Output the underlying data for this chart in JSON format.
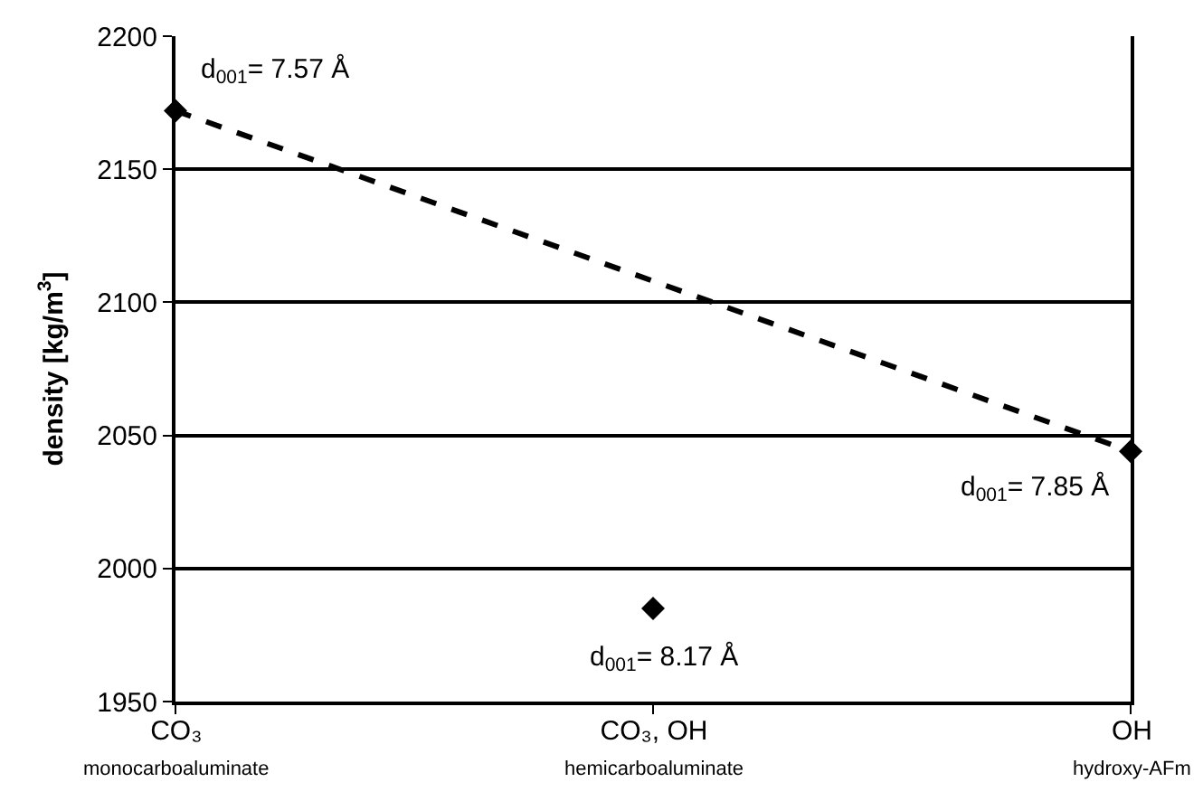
{
  "chart_data": {
    "type": "scatter",
    "ylabel": "density [kg/m$^{3}$]",
    "categories": [
      "CO₃\nmonocarboaluminate",
      "CO₃, OH\nhemicarboaluminate",
      "OH\nhydroxy-AFm"
    ],
    "series": [
      {
        "color": "#000000",
        "marker": "diamond",
        "values": [
          2172,
          1985,
          2044
        ]
      },
      {
        "type": "line",
        "color": "#000000",
        "line_style": "dashed",
        "x": [
          "CO₃\nmonocarboaluminate",
          "OH\nhydroxy-AFm"
        ],
        "values": [
          2172,
          2044
        ]
      }
    ],
    "ylim": [
      1950,
      2200
    ],
    "yticks": [
      1950,
      2000,
      2050,
      2100,
      2150,
      2200
    ],
    "grid": "y",
    "legend": false,
    "annotations": [
      {
        "text": "d$_{001}$= 7.57 Å",
        "x": "CO₃\nmonocarboaluminate",
        "y": 2172
      },
      {
        "text": "d$_{001}$= 8.17 Å",
        "x": "CO₃, OH\nhemicarboaluminate",
        "y": 1985
      },
      {
        "text": "d$_{001}$= 7.85 Å",
        "x": "OH\nhydroxy-AFm",
        "y": 2044
      }
    ]
  }
}
